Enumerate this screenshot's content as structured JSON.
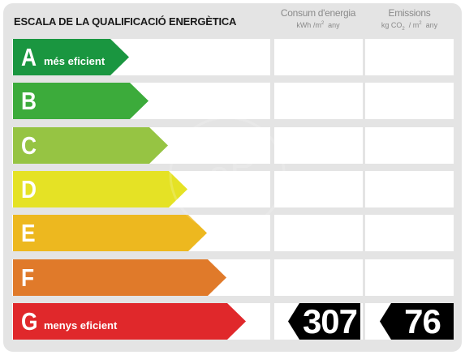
{
  "header": {
    "title": "ESCALA DE LA QUALIFICACIÓ ENERGÈTICA",
    "consum": {
      "label": "Consum d'energia",
      "unit_main": "kWh /m",
      "unit_sup": "2",
      "unit_tail": "any"
    },
    "emissions": {
      "label": "Emissions",
      "unit_a": "kg CO",
      "unit_sub": "2",
      "unit_b": "/ m",
      "unit_sup": "2",
      "unit_c": "any"
    }
  },
  "ratings": [
    {
      "letter": "A",
      "label": "més eficient",
      "color": "#1a9640"
    },
    {
      "letter": "B",
      "label": "",
      "color": "#3cab3b"
    },
    {
      "letter": "C",
      "label": "",
      "color": "#96c443"
    },
    {
      "letter": "D",
      "label": "",
      "color": "#e5e225"
    },
    {
      "letter": "E",
      "label": "",
      "color": "#edb81f"
    },
    {
      "letter": "F",
      "label": "",
      "color": "#e07a2a"
    },
    {
      "letter": "G",
      "label": "menys eficient",
      "color": "#e0282b"
    }
  ],
  "current": {
    "rating": "G",
    "consum_value": "307",
    "emissions_value": "76"
  }
}
